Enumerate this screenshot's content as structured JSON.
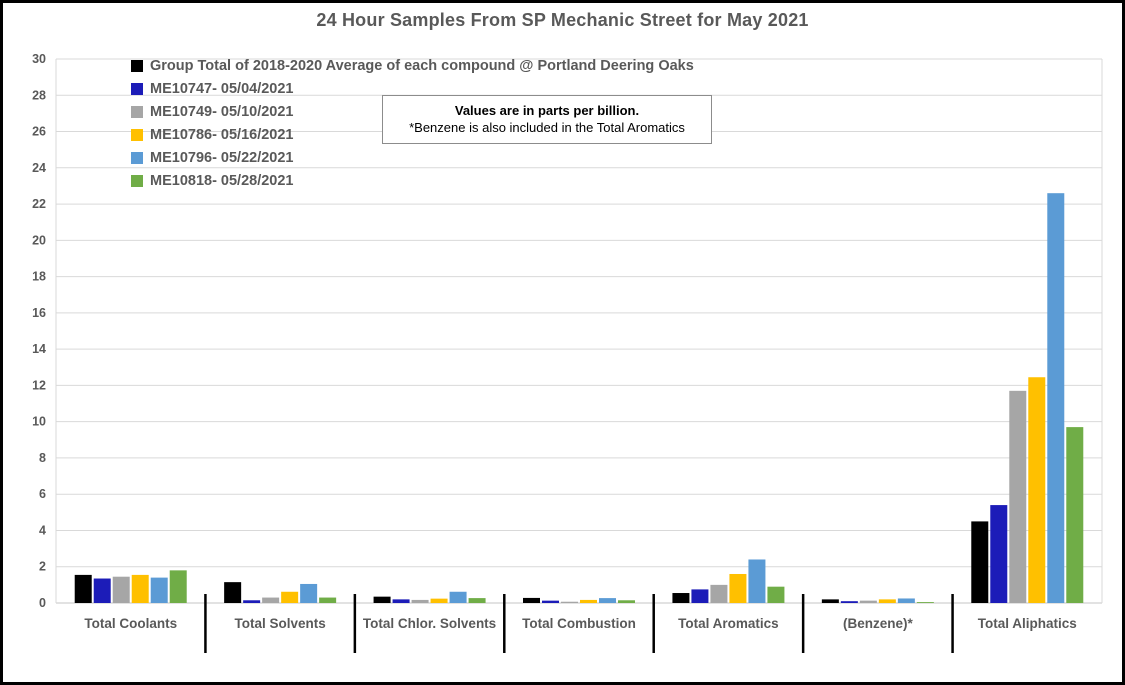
{
  "chart_data": {
    "type": "bar",
    "title": "24 Hour Samples From SP Mechanic Street for May 2021",
    "xlabel": "",
    "ylabel": "",
    "ylim": [
      0,
      30
    ],
    "ytick_step": 2,
    "grid": true,
    "legend_position": "top-left-inside",
    "units": "parts per billion",
    "categories": [
      "Total Coolants",
      "Total Solvents",
      "Total Chlor. Solvents",
      "Total Combustion",
      "Total Aromatics",
      "(Benzene)*",
      "Total Aliphatics"
    ],
    "series": [
      {
        "name": "Group Total of 2018-2020 Average of each compound @ Portland Deering Oaks",
        "color": "#000000",
        "values": [
          1.55,
          1.15,
          0.35,
          0.28,
          0.55,
          0.2,
          4.5
        ]
      },
      {
        "name": "ME10747- 05/04/2021",
        "color": "#1C1CB8",
        "values": [
          1.35,
          0.15,
          0.2,
          0.13,
          0.75,
          0.1,
          5.4
        ]
      },
      {
        "name": "ME10749- 05/10/2021",
        "color": "#A6A6A6",
        "values": [
          1.45,
          0.3,
          0.17,
          0.07,
          1.0,
          0.13,
          11.7
        ]
      },
      {
        "name": "ME10786- 05/16/2021",
        "color": "#FFC000",
        "values": [
          1.55,
          0.62,
          0.24,
          0.17,
          1.6,
          0.2,
          12.45
        ]
      },
      {
        "name": "ME10796- 05/22/2021",
        "color": "#5B9BD5",
        "values": [
          1.4,
          1.05,
          0.62,
          0.27,
          2.4,
          0.25,
          22.6
        ]
      },
      {
        "name": "ME10818- 05/28/2021",
        "color": "#70AD47",
        "values": [
          1.8,
          0.3,
          0.27,
          0.15,
          0.9,
          0.05,
          9.7
        ]
      }
    ],
    "annotation": {
      "line1": "Values are in parts per billion.",
      "line2": "*Benzene is also included in the Total Aromatics"
    }
  },
  "style_colors": {
    "gridline": "#D9D9D9",
    "axis_line": "#C6C6C6",
    "tick_label": "#595959",
    "category_label": "#595959",
    "separator": "#000000"
  }
}
